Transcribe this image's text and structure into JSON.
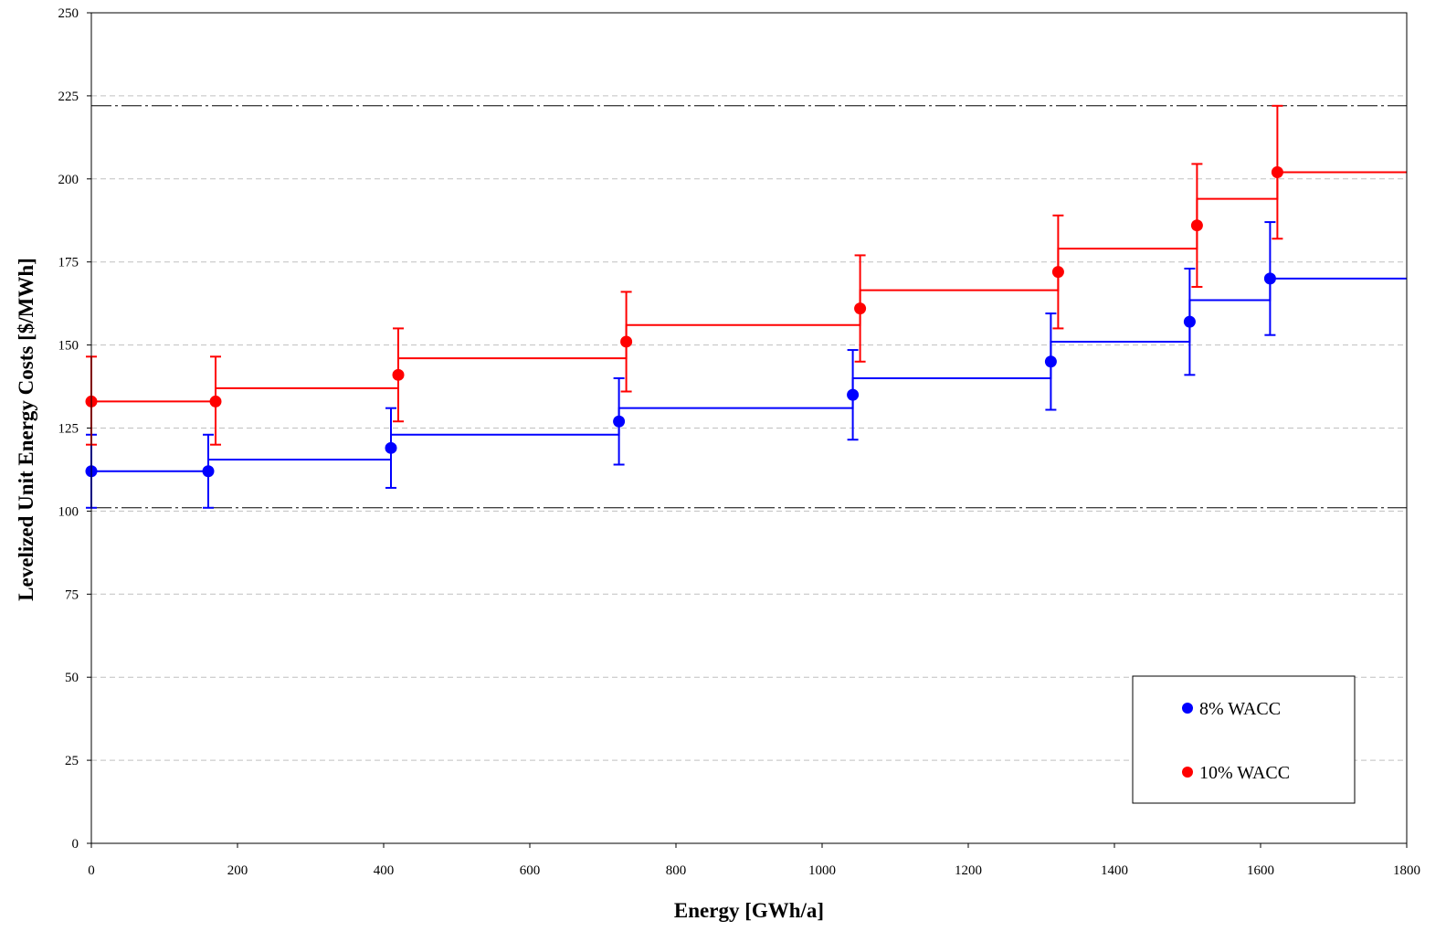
{
  "chart_data": {
    "type": "scatter",
    "title": "",
    "xlabel": "Energy [GWh/a]",
    "ylabel": "Levelized Unit Energy Costs  [$/MWh]",
    "xlim": [
      0,
      1800
    ],
    "ylim": [
      0,
      250
    ],
    "x_ticks": [
      0,
      200,
      400,
      600,
      800,
      1000,
      1200,
      1400,
      1600,
      1800
    ],
    "y_ticks": [
      0,
      25,
      50,
      75,
      100,
      125,
      150,
      175,
      200,
      225,
      250
    ],
    "grid": "horizontal dashed",
    "legend_position": "bottom-right",
    "reference_lines": [
      {
        "y": 222,
        "style": "dash-dot"
      },
      {
        "y": 101,
        "style": "dash-dot"
      }
    ],
    "series": [
      {
        "name": "8% WACC",
        "color": "#0000FF",
        "points": [
          {
            "x": 0,
            "y": 112,
            "err_low": 101,
            "err_high": 123
          },
          {
            "x": 160,
            "y": 112,
            "err_low": 101,
            "err_high": 123
          },
          {
            "x": 410,
            "y": 119,
            "err_low": 107,
            "err_high": 131
          },
          {
            "x": 722,
            "y": 127,
            "err_low": 114,
            "err_high": 140
          },
          {
            "x": 1042,
            "y": 135,
            "err_low": 121.5,
            "err_high": 148.5
          },
          {
            "x": 1313,
            "y": 145,
            "err_low": 130.5,
            "err_high": 159.5
          },
          {
            "x": 1503,
            "y": 157,
            "err_low": 141,
            "err_high": 173
          },
          {
            "x": 1613,
            "y": 170,
            "err_low": 153,
            "err_high": 187
          }
        ],
        "steps": [
          {
            "x0": 0,
            "x1": 160,
            "y": 112
          },
          {
            "x0": 160,
            "x1": 410,
            "y": 115.5
          },
          {
            "x0": 410,
            "x1": 722,
            "y": 123
          },
          {
            "x0": 722,
            "x1": 1042,
            "y": 131
          },
          {
            "x0": 1042,
            "x1": 1313,
            "y": 140
          },
          {
            "x0": 1313,
            "x1": 1503,
            "y": 151
          },
          {
            "x0": 1503,
            "x1": 1613,
            "y": 163.5
          },
          {
            "x0": 1613,
            "x1": 1800,
            "y": 170
          }
        ]
      },
      {
        "name": "10% WACC",
        "color": "#FF0000",
        "points": [
          {
            "x": 0,
            "y": 133,
            "err_low": 120,
            "err_high": 146.5
          },
          {
            "x": 170,
            "y": 133,
            "err_low": 120,
            "err_high": 146.5
          },
          {
            "x": 420,
            "y": 141,
            "err_low": 127,
            "err_high": 155
          },
          {
            "x": 732,
            "y": 151,
            "err_low": 136,
            "err_high": 166
          },
          {
            "x": 1052,
            "y": 161,
            "err_low": 145,
            "err_high": 177
          },
          {
            "x": 1323,
            "y": 172,
            "err_low": 155,
            "err_high": 189
          },
          {
            "x": 1513,
            "y": 186,
            "err_low": 167.5,
            "err_high": 204.5
          },
          {
            "x": 1623,
            "y": 202,
            "err_low": 182,
            "err_high": 222
          }
        ],
        "steps": [
          {
            "x0": 0,
            "x1": 170,
            "y": 133
          },
          {
            "x0": 170,
            "x1": 420,
            "y": 137
          },
          {
            "x0": 420,
            "x1": 732,
            "y": 146
          },
          {
            "x0": 732,
            "x1": 1052,
            "y": 156
          },
          {
            "x0": 1052,
            "x1": 1323,
            "y": 166.5
          },
          {
            "x0": 1323,
            "x1": 1513,
            "y": 179
          },
          {
            "x0": 1513,
            "x1": 1623,
            "y": 194
          },
          {
            "x0": 1623,
            "x1": 1800,
            "y": 202
          }
        ]
      }
    ]
  }
}
